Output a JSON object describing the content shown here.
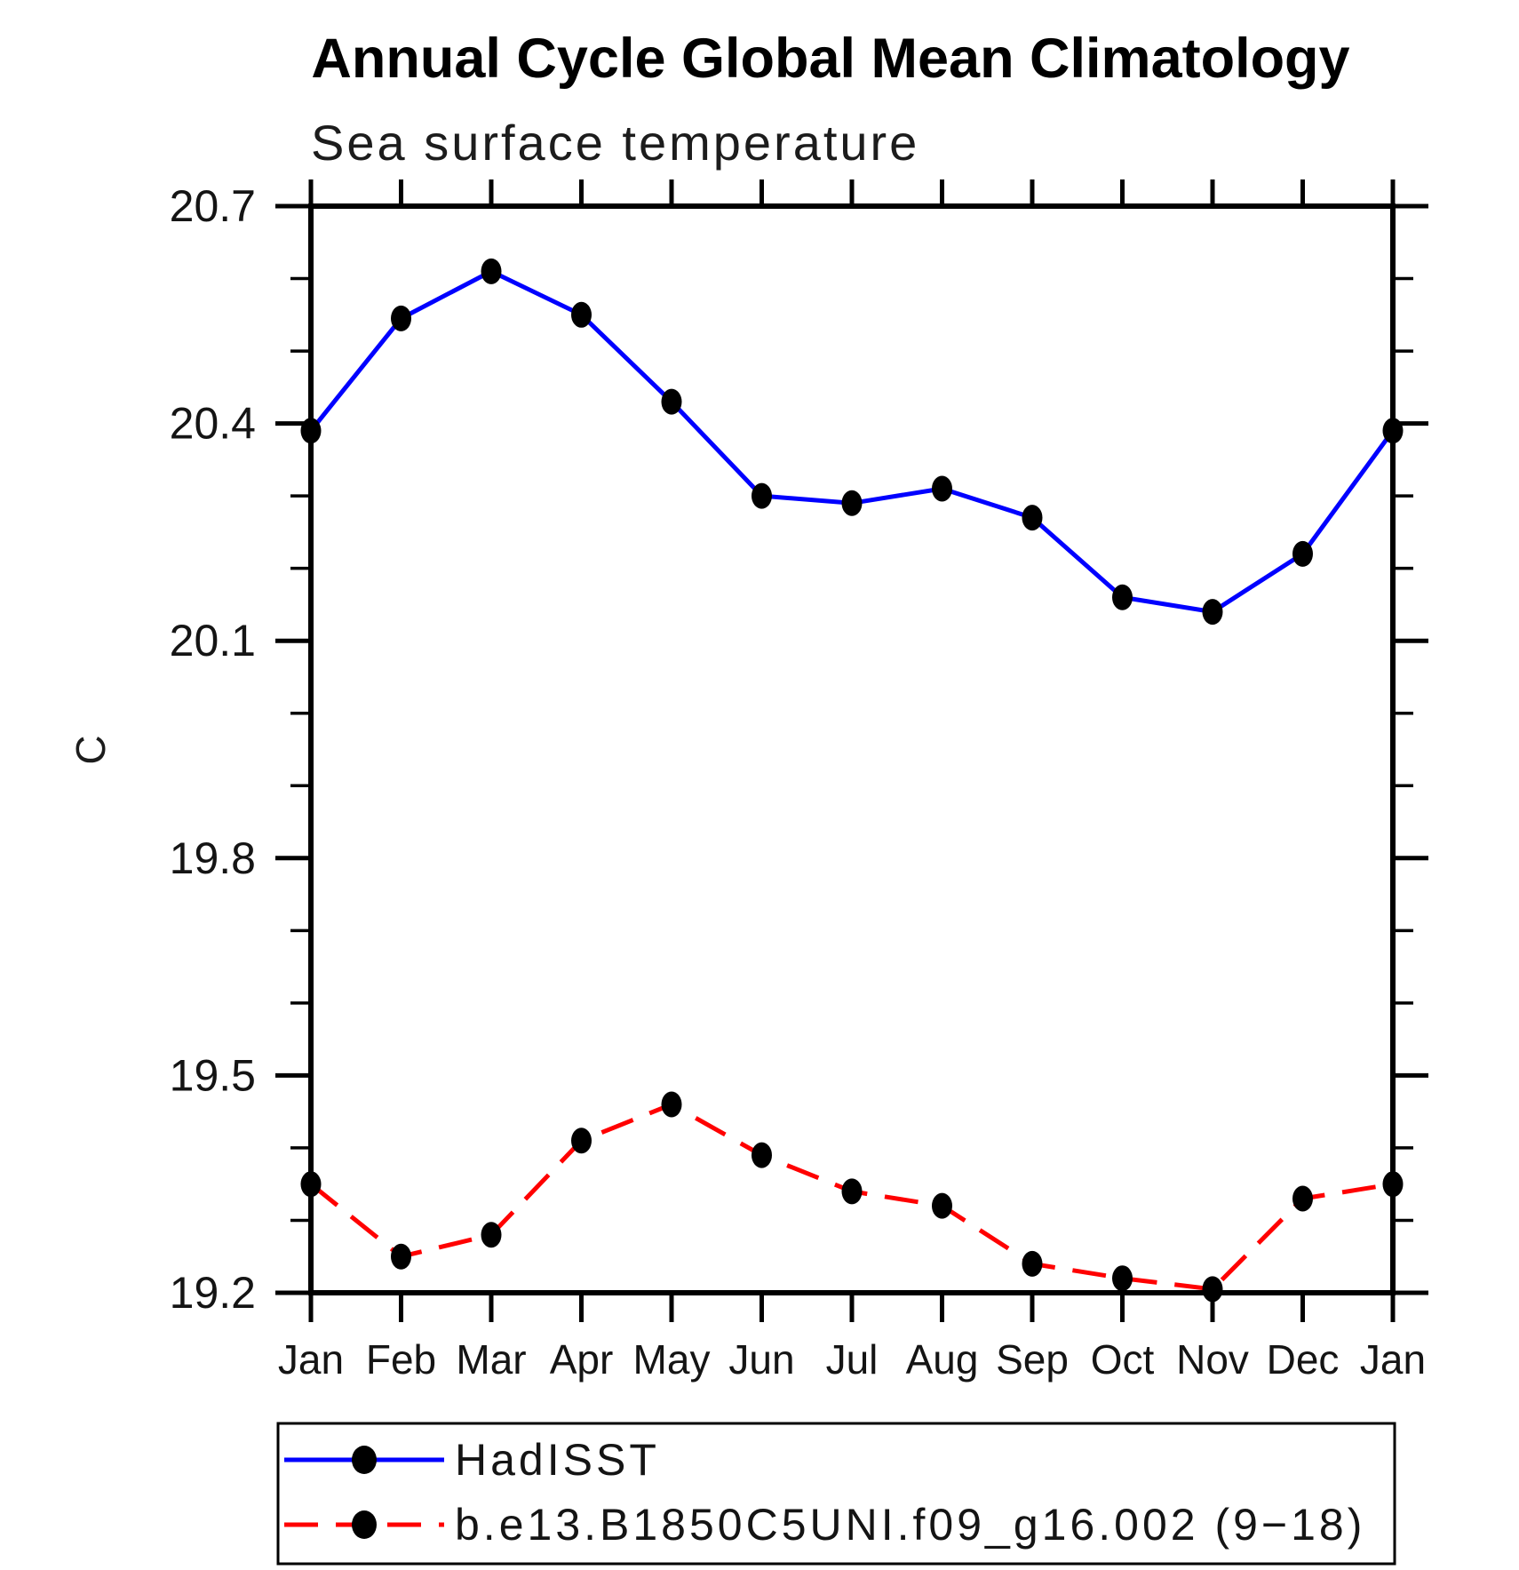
{
  "title": "Annual Cycle Global Mean Climatology",
  "subtitle": "Sea surface temperature",
  "y_axis": {
    "label": "C",
    "min": 19.2,
    "max": 20.7,
    "major_tick_step": 0.3,
    "minor_tick_step": 0.1,
    "tick_labels": [
      "19.2",
      "19.5",
      "19.8",
      "20.1",
      "20.4",
      "20.7"
    ]
  },
  "x_axis": {
    "tick_labels": [
      "Jan",
      "Feb",
      "Mar",
      "Apr",
      "May",
      "Jun",
      "Jul",
      "Aug",
      "Sep",
      "Oct",
      "Nov",
      "Dec",
      "Jan"
    ]
  },
  "legend": {
    "position": "bottom",
    "entries": [
      {
        "label": "HadISST",
        "line_style": "solid",
        "line_color": "#0000ff",
        "marker": "filled-circle",
        "marker_color": "#000000"
      },
      {
        "label": "b.e13.B1850C5UNI.f09_g16.002 (9−18)",
        "line_style": "dashed",
        "line_color": "#ff0000",
        "marker": "filled-circle",
        "marker_color": "#000000"
      }
    ]
  },
  "chart_data": {
    "type": "line",
    "title": "Annual Cycle Global Mean Climatology",
    "subtitle": "Sea surface temperature",
    "xlabel": "",
    "ylabel": "C",
    "ylim": [
      19.2,
      20.7
    ],
    "y_major_ticks": [
      19.2,
      19.5,
      19.8,
      20.1,
      20.4,
      20.7
    ],
    "y_minor_tick_step": 0.1,
    "grid": false,
    "legend_position": "bottom",
    "categories": [
      "Jan",
      "Feb",
      "Mar",
      "Apr",
      "May",
      "Jun",
      "Jul",
      "Aug",
      "Sep",
      "Oct",
      "Nov",
      "Dec",
      "Jan"
    ],
    "series": [
      {
        "name": "HadISST",
        "color": "#0000ff",
        "line_style": "solid",
        "marker": "filled-circle",
        "marker_color": "#000000",
        "values": [
          20.39,
          20.545,
          20.61,
          20.55,
          20.43,
          20.3,
          20.29,
          20.31,
          20.27,
          20.16,
          20.14,
          20.22,
          20.39
        ]
      },
      {
        "name": "b.e13.B1850C5UNI.f09_g16.002 (9−18)",
        "color": "#ff0000",
        "line_style": "dashed",
        "marker": "filled-circle",
        "marker_color": "#000000",
        "values": [
          19.35,
          19.25,
          19.28,
          19.41,
          19.46,
          19.39,
          19.34,
          19.32,
          19.24,
          19.22,
          19.205,
          19.33,
          19.35
        ]
      }
    ]
  }
}
